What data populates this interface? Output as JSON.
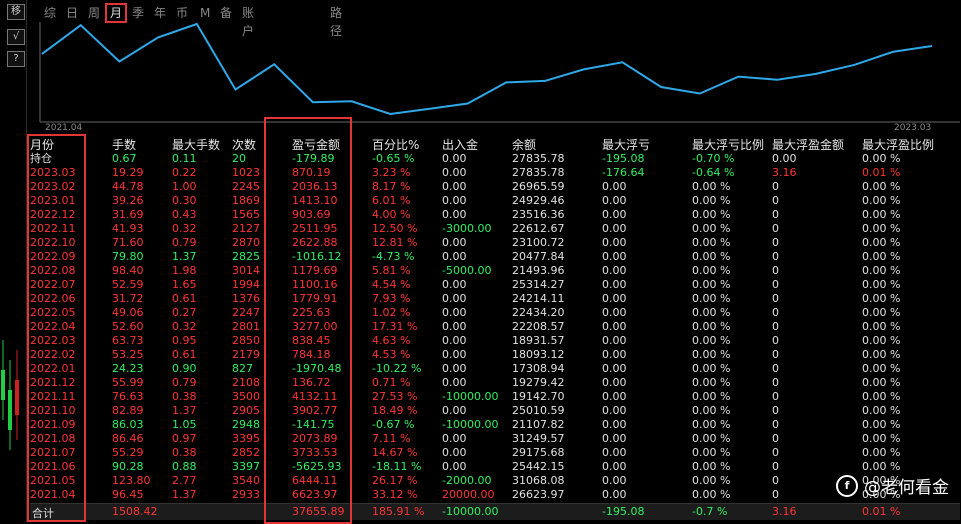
{
  "left_buttons": [
    "移",
    "√",
    "?"
  ],
  "tabs": [
    {
      "label": "综",
      "active": false
    },
    {
      "label": "日",
      "active": false
    },
    {
      "label": "周",
      "active": false
    },
    {
      "label": "月",
      "active": true
    },
    {
      "label": "季",
      "active": false
    },
    {
      "label": "年",
      "active": false
    },
    {
      "label": "币",
      "active": false
    },
    {
      "label": "M",
      "active": false
    },
    {
      "label": "备",
      "active": false
    },
    {
      "label": "账户",
      "active": false
    },
    {
      "label": "路径",
      "active": false
    }
  ],
  "curve": {
    "start_label": "2021.04",
    "end_label": "2023.03",
    "color": "#2fa8e8",
    "values": [
      26623.97,
      31068.08,
      25442.15,
      29175.68,
      31249.57,
      21107.82,
      25010.59,
      19142.7,
      19279.42,
      17308.94,
      18093.12,
      18931.57,
      22208.57,
      22434.2,
      24214.11,
      25314.27,
      21493.96,
      20477.84,
      23100.72,
      22612.67,
      23516.36,
      24929.46,
      26965.59,
      27835.78
    ]
  },
  "headers": [
    "月份",
    "手数",
    "最大手数",
    "次数",
    "盈亏金额",
    "百分比%",
    "出入金",
    "余额",
    "最大浮亏",
    "最大浮亏比例",
    "最大浮盈金额",
    "最大浮盈比例"
  ],
  "rows": [
    {
      "month": "持仓",
      "lots": "0.67",
      "maxlots": "0.11",
      "count": "20",
      "pnl": "-179.89",
      "pct": "-0.65 %",
      "flow": "0.00",
      "balance": "27835.78",
      "maxloss": "-195.08",
      "maxlosspct": "-0.70 %",
      "maxprofit": "0.00",
      "maxprofitpct": "0.00 %",
      "tone": "green"
    },
    {
      "month": "2023.03",
      "lots": "19.29",
      "maxlots": "0.22",
      "count": "1023",
      "pnl": "870.19",
      "pct": "3.23 %",
      "flow": "0.00",
      "balance": "27835.78",
      "maxloss": "-176.64",
      "maxlosspct": "-0.64 %",
      "maxprofit": "3.16",
      "maxprofitpct": "0.01 %",
      "tone": "red"
    },
    {
      "month": "2023.02",
      "lots": "44.78",
      "maxlots": "1.00",
      "count": "2245",
      "pnl": "2036.13",
      "pct": "8.17 %",
      "flow": "0.00",
      "balance": "26965.59",
      "maxloss": "0.00",
      "maxlosspct": "0.00 %",
      "maxprofit": "0",
      "maxprofitpct": "0.00 %",
      "tone": "red"
    },
    {
      "month": "2023.01",
      "lots": "39.26",
      "maxlots": "0.30",
      "count": "1869",
      "pnl": "1413.10",
      "pct": "6.01 %",
      "flow": "0.00",
      "balance": "24929.46",
      "maxloss": "0.00",
      "maxlosspct": "0.00 %",
      "maxprofit": "0",
      "maxprofitpct": "0.00 %",
      "tone": "red"
    },
    {
      "month": "2022.12",
      "lots": "31.69",
      "maxlots": "0.43",
      "count": "1565",
      "pnl": "903.69",
      "pct": "4.00 %",
      "flow": "0.00",
      "balance": "23516.36",
      "maxloss": "0.00",
      "maxlosspct": "0.00 %",
      "maxprofit": "0",
      "maxprofitpct": "0.00 %",
      "tone": "red"
    },
    {
      "month": "2022.11",
      "lots": "41.93",
      "maxlots": "0.32",
      "count": "2127",
      "pnl": "2511.95",
      "pct": "12.50 %",
      "flow": "-3000.00",
      "balance": "22612.67",
      "maxloss": "0.00",
      "maxlosspct": "0.00 %",
      "maxprofit": "0",
      "maxprofitpct": "0.00 %",
      "tone": "red"
    },
    {
      "month": "2022.10",
      "lots": "71.60",
      "maxlots": "0.79",
      "count": "2870",
      "pnl": "2622.88",
      "pct": "12.81 %",
      "flow": "0.00",
      "balance": "23100.72",
      "maxloss": "0.00",
      "maxlosspct": "0.00 %",
      "maxprofit": "0",
      "maxprofitpct": "0.00 %",
      "tone": "red"
    },
    {
      "month": "2022.09",
      "lots": "79.80",
      "maxlots": "1.37",
      "count": "2825",
      "pnl": "-1016.12",
      "pct": "-4.73 %",
      "flow": "0.00",
      "balance": "20477.84",
      "maxloss": "0.00",
      "maxlosspct": "0.00 %",
      "maxprofit": "0",
      "maxprofitpct": "0.00 %",
      "tone": "green"
    },
    {
      "month": "2022.08",
      "lots": "98.40",
      "maxlots": "1.98",
      "count": "3014",
      "pnl": "1179.69",
      "pct": "5.81 %",
      "flow": "-5000.00",
      "balance": "21493.96",
      "maxloss": "0.00",
      "maxlosspct": "0.00 %",
      "maxprofit": "0",
      "maxprofitpct": "0.00 %",
      "tone": "red"
    },
    {
      "month": "2022.07",
      "lots": "52.59",
      "maxlots": "1.65",
      "count": "1994",
      "pnl": "1100.16",
      "pct": "4.54 %",
      "flow": "0.00",
      "balance": "25314.27",
      "maxloss": "0.00",
      "maxlosspct": "0.00 %",
      "maxprofit": "0",
      "maxprofitpct": "0.00 %",
      "tone": "red"
    },
    {
      "month": "2022.06",
      "lots": "31.72",
      "maxlots": "0.61",
      "count": "1376",
      "pnl": "1779.91",
      "pct": "7.93 %",
      "flow": "0.00",
      "balance": "24214.11",
      "maxloss": "0.00",
      "maxlosspct": "0.00 %",
      "maxprofit": "0",
      "maxprofitpct": "0.00 %",
      "tone": "red"
    },
    {
      "month": "2022.05",
      "lots": "49.06",
      "maxlots": "0.27",
      "count": "2247",
      "pnl": "225.63",
      "pct": "1.02 %",
      "flow": "0.00",
      "balance": "22434.20",
      "maxloss": "0.00",
      "maxlosspct": "0.00 %",
      "maxprofit": "0",
      "maxprofitpct": "0.00 %",
      "tone": "red"
    },
    {
      "month": "2022.04",
      "lots": "52.60",
      "maxlots": "0.32",
      "count": "2801",
      "pnl": "3277.00",
      "pct": "17.31 %",
      "flow": "0.00",
      "balance": "22208.57",
      "maxloss": "0.00",
      "maxlosspct": "0.00 %",
      "maxprofit": "0",
      "maxprofitpct": "0.00 %",
      "tone": "red"
    },
    {
      "month": "2022.03",
      "lots": "63.73",
      "maxlots": "0.95",
      "count": "2850",
      "pnl": "838.45",
      "pct": "4.63 %",
      "flow": "0.00",
      "balance": "18931.57",
      "maxloss": "0.00",
      "maxlosspct": "0.00 %",
      "maxprofit": "0",
      "maxprofitpct": "0.00 %",
      "tone": "red"
    },
    {
      "month": "2022.02",
      "lots": "53.25",
      "maxlots": "0.61",
      "count": "2179",
      "pnl": "784.18",
      "pct": "4.53 %",
      "flow": "0.00",
      "balance": "18093.12",
      "maxloss": "0.00",
      "maxlosspct": "0.00 %",
      "maxprofit": "0",
      "maxprofitpct": "0.00 %",
      "tone": "red"
    },
    {
      "month": "2022.01",
      "lots": "24.23",
      "maxlots": "0.90",
      "count": "827",
      "pnl": "-1970.48",
      "pct": "-10.22 %",
      "flow": "0.00",
      "balance": "17308.94",
      "maxloss": "0.00",
      "maxlosspct": "0.00 %",
      "maxprofit": "0",
      "maxprofitpct": "0.00 %",
      "tone": "green"
    },
    {
      "month": "2021.12",
      "lots": "55.99",
      "maxlots": "0.79",
      "count": "2108",
      "pnl": "136.72",
      "pct": "0.71 %",
      "flow": "0.00",
      "balance": "19279.42",
      "maxloss": "0.00",
      "maxlosspct": "0.00 %",
      "maxprofit": "0",
      "maxprofitpct": "0.00 %",
      "tone": "red"
    },
    {
      "month": "2021.11",
      "lots": "76.63",
      "maxlots": "0.38",
      "count": "3500",
      "pnl": "4132.11",
      "pct": "27.53 %",
      "flow": "-10000.00",
      "balance": "19142.70",
      "maxloss": "0.00",
      "maxlosspct": "0.00 %",
      "maxprofit": "0",
      "maxprofitpct": "0.00 %",
      "tone": "red"
    },
    {
      "month": "2021.10",
      "lots": "82.89",
      "maxlots": "1.37",
      "count": "2905",
      "pnl": "3902.77",
      "pct": "18.49 %",
      "flow": "0.00",
      "balance": "25010.59",
      "maxloss": "0.00",
      "maxlosspct": "0.00 %",
      "maxprofit": "0",
      "maxprofitpct": "0.00 %",
      "tone": "red"
    },
    {
      "month": "2021.09",
      "lots": "86.03",
      "maxlots": "1.05",
      "count": "2948",
      "pnl": "-141.75",
      "pct": "-0.67 %",
      "flow": "-10000.00",
      "balance": "21107.82",
      "maxloss": "0.00",
      "maxlosspct": "0.00 %",
      "maxprofit": "0",
      "maxprofitpct": "0.00 %",
      "tone": "green"
    },
    {
      "month": "2021.08",
      "lots": "86.46",
      "maxlots": "0.97",
      "count": "3395",
      "pnl": "2073.89",
      "pct": "7.11 %",
      "flow": "0.00",
      "balance": "31249.57",
      "maxloss": "0.00",
      "maxlosspct": "0.00 %",
      "maxprofit": "0",
      "maxprofitpct": "0.00 %",
      "tone": "red"
    },
    {
      "month": "2021.07",
      "lots": "55.29",
      "maxlots": "0.38",
      "count": "2852",
      "pnl": "3733.53",
      "pct": "14.67 %",
      "flow": "0.00",
      "balance": "29175.68",
      "maxloss": "0.00",
      "maxlosspct": "0.00 %",
      "maxprofit": "0",
      "maxprofitpct": "0.00 %",
      "tone": "red"
    },
    {
      "month": "2021.06",
      "lots": "90.28",
      "maxlots": "0.88",
      "count": "3397",
      "pnl": "-5625.93",
      "pct": "-18.11 %",
      "flow": "0.00",
      "balance": "25442.15",
      "maxloss": "0.00",
      "maxlosspct": "0.00 %",
      "maxprofit": "0",
      "maxprofitpct": "0.00 %",
      "tone": "green"
    },
    {
      "month": "2021.05",
      "lots": "123.80",
      "maxlots": "2.77",
      "count": "3540",
      "pnl": "6444.11",
      "pct": "26.17 %",
      "flow": "-2000.00",
      "balance": "31068.08",
      "maxloss": "0.00",
      "maxlosspct": "0.00 %",
      "maxprofit": "0",
      "maxprofitpct": "0.00 %",
      "tone": "red"
    },
    {
      "month": "2021.04",
      "lots": "96.45",
      "maxlots": "1.37",
      "count": "2933",
      "pnl": "6623.97",
      "pct": "33.12 %",
      "flow": "20000.00",
      "balance": "26623.97",
      "maxloss": "0.00",
      "maxlosspct": "0.00 %",
      "maxprofit": "0",
      "maxprofitpct": "0.00 %",
      "tone": "red"
    }
  ],
  "totals": {
    "month": "合计",
    "lots": "1508.42",
    "pnl": "37655.89",
    "pct": "185.91 %",
    "flow": "-10000.00",
    "maxloss": "-195.08",
    "maxlosspct": "-0.7 %",
    "maxprofit": "3.16",
    "maxprofitpct": "0.01 %"
  },
  "watermark": {
    "icon": "f",
    "text": "@老何看金"
  },
  "colors": {
    "positive": "#ff3535",
    "negative": "#30f060",
    "highlight": "#e23636"
  }
}
